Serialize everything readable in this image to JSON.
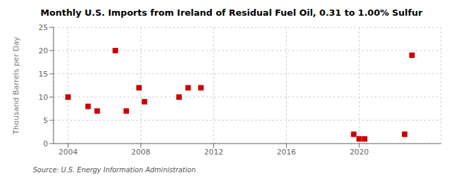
{
  "chart_data": {
    "type": "scatter",
    "title": "Monthly U.S. Imports from Ireland of Residual Fuel Oil, 0.31 to 1.00% Sulfur",
    "ylabel": "Thousand Barrels per Day",
    "annotation": "Source: U.S. Energy Information Administration",
    "x": [
      2004.0,
      2005.1,
      2005.6,
      2006.6,
      2007.2,
      2007.9,
      2008.2,
      2010.1,
      2010.6,
      2011.3,
      2019.7,
      2020.0,
      2020.3,
      2022.5,
      2022.9
    ],
    "values": [
      10,
      8,
      7,
      20,
      7,
      12,
      9,
      10,
      12,
      12,
      2,
      1,
      1,
      2,
      19
    ],
    "color": "#cc0000",
    "marker": "square",
    "xlim": [
      2003.2,
      2024.5
    ],
    "ylim": [
      0,
      25
    ],
    "xticks": [
      2004,
      2008,
      2012,
      2016,
      2020
    ],
    "yticks": [
      0,
      5,
      10,
      15,
      20,
      25
    ],
    "grid": true
  }
}
